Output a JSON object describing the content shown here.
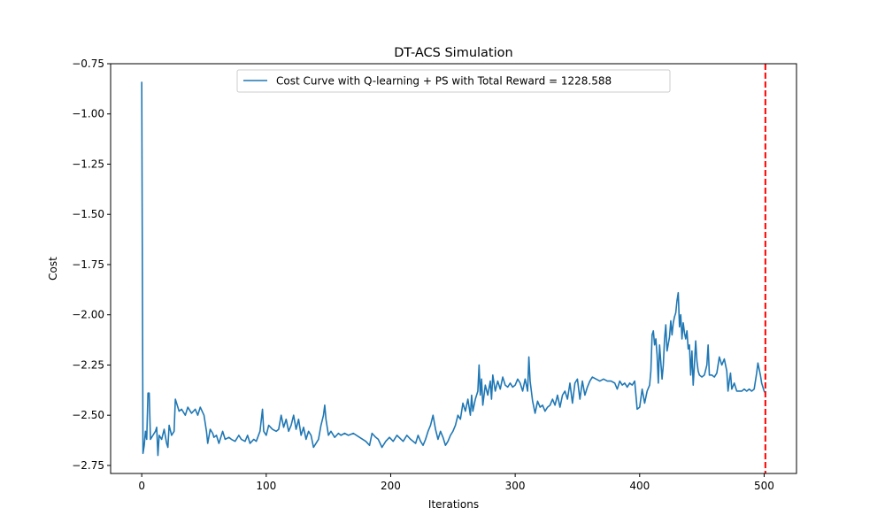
{
  "chart_data": {
    "type": "line",
    "title": "DT-ACS Simulation",
    "xlabel": "Iterations",
    "ylabel": "Cost",
    "xlim": [
      -25,
      526
    ],
    "ylim": [
      -2.79,
      -0.75
    ],
    "x_ticks": [
      0,
      100,
      200,
      300,
      400,
      500
    ],
    "x_tick_labels": [
      "0",
      "100",
      "200",
      "300",
      "400",
      "500"
    ],
    "y_ticks": [
      -0.75,
      -1.0,
      -1.25,
      -1.5,
      -1.75,
      -2.0,
      -2.25,
      -2.5,
      -2.75
    ],
    "y_tick_labels": [
      "−0.75",
      "−1.00",
      "−1.25",
      "−1.50",
      "−1.75",
      "−2.00",
      "−2.25",
      "−2.50",
      "−2.75"
    ],
    "grid": false,
    "legend_position": "upper center",
    "colors": {
      "series": "#1f77b4",
      "vline": "#ff0000"
    },
    "vline": {
      "x": 501,
      "style": "dashed"
    },
    "series": [
      {
        "name": "Cost Curve with Q-learning + PS with Total Reward = 1228.588",
        "points": [
          [
            0,
            -0.84
          ],
          [
            1,
            -2.69
          ],
          [
            2,
            -2.65
          ],
          [
            3,
            -2.58
          ],
          [
            4,
            -2.62
          ],
          [
            5,
            -2.39
          ],
          [
            6,
            -2.39
          ],
          [
            7,
            -2.62
          ],
          [
            9,
            -2.6
          ],
          [
            11,
            -2.58
          ],
          [
            12,
            -2.56
          ],
          [
            13,
            -2.7
          ],
          [
            14,
            -2.6
          ],
          [
            16,
            -2.62
          ],
          [
            18,
            -2.57
          ],
          [
            20,
            -2.64
          ],
          [
            21,
            -2.66
          ],
          [
            22,
            -2.55
          ],
          [
            24,
            -2.6
          ],
          [
            26,
            -2.58
          ],
          [
            27,
            -2.42
          ],
          [
            28,
            -2.44
          ],
          [
            30,
            -2.48
          ],
          [
            32,
            -2.47
          ],
          [
            35,
            -2.5
          ],
          [
            37,
            -2.46
          ],
          [
            40,
            -2.49
          ],
          [
            43,
            -2.47
          ],
          [
            45,
            -2.5
          ],
          [
            47,
            -2.46
          ],
          [
            50,
            -2.5
          ],
          [
            52,
            -2.58
          ],
          [
            53,
            -2.64
          ],
          [
            55,
            -2.57
          ],
          [
            57,
            -2.59
          ],
          [
            58,
            -2.61
          ],
          [
            60,
            -2.6
          ],
          [
            62,
            -2.64
          ],
          [
            65,
            -2.58
          ],
          [
            67,
            -2.62
          ],
          [
            70,
            -2.61
          ],
          [
            72,
            -2.62
          ],
          [
            75,
            -2.63
          ],
          [
            78,
            -2.6
          ],
          [
            80,
            -2.62
          ],
          [
            83,
            -2.63
          ],
          [
            85,
            -2.6
          ],
          [
            87,
            -2.64
          ],
          [
            90,
            -2.62
          ],
          [
            92,
            -2.63
          ],
          [
            95,
            -2.58
          ],
          [
            97,
            -2.47
          ],
          [
            98,
            -2.58
          ],
          [
            100,
            -2.6
          ],
          [
            102,
            -2.55
          ],
          [
            105,
            -2.57
          ],
          [
            108,
            -2.58
          ],
          [
            110,
            -2.57
          ],
          [
            112,
            -2.5
          ],
          [
            114,
            -2.56
          ],
          [
            116,
            -2.52
          ],
          [
            118,
            -2.58
          ],
          [
            120,
            -2.55
          ],
          [
            122,
            -2.5
          ],
          [
            124,
            -2.57
          ],
          [
            126,
            -2.52
          ],
          [
            128,
            -2.6
          ],
          [
            130,
            -2.56
          ],
          [
            132,
            -2.62
          ],
          [
            134,
            -2.58
          ],
          [
            136,
            -2.6
          ],
          [
            138,
            -2.66
          ],
          [
            140,
            -2.64
          ],
          [
            142,
            -2.62
          ],
          [
            144,
            -2.55
          ],
          [
            146,
            -2.5
          ],
          [
            147,
            -2.45
          ],
          [
            148,
            -2.52
          ],
          [
            150,
            -2.6
          ],
          [
            152,
            -2.58
          ],
          [
            155,
            -2.61
          ],
          [
            158,
            -2.59
          ],
          [
            160,
            -2.6
          ],
          [
            163,
            -2.59
          ],
          [
            166,
            -2.6
          ],
          [
            170,
            -2.59
          ],
          [
            175,
            -2.61
          ],
          [
            180,
            -2.63
          ],
          [
            183,
            -2.65
          ],
          [
            185,
            -2.59
          ],
          [
            188,
            -2.61
          ],
          [
            190,
            -2.62
          ],
          [
            193,
            -2.66
          ],
          [
            196,
            -2.63
          ],
          [
            199,
            -2.61
          ],
          [
            202,
            -2.63
          ],
          [
            205,
            -2.6
          ],
          [
            210,
            -2.63
          ],
          [
            213,
            -2.6
          ],
          [
            216,
            -2.62
          ],
          [
            220,
            -2.64
          ],
          [
            222,
            -2.6
          ],
          [
            224,
            -2.63
          ],
          [
            226,
            -2.65
          ],
          [
            228,
            -2.62
          ],
          [
            230,
            -2.58
          ],
          [
            232,
            -2.55
          ],
          [
            234,
            -2.5
          ],
          [
            236,
            -2.57
          ],
          [
            238,
            -2.62
          ],
          [
            240,
            -2.58
          ],
          [
            242,
            -2.61
          ],
          [
            244,
            -2.65
          ],
          [
            246,
            -2.63
          ],
          [
            248,
            -2.6
          ],
          [
            250,
            -2.58
          ],
          [
            252,
            -2.55
          ],
          [
            254,
            -2.5
          ],
          [
            256,
            -2.52
          ],
          [
            258,
            -2.44
          ],
          [
            260,
            -2.48
          ],
          [
            262,
            -2.42
          ],
          [
            264,
            -2.5
          ],
          [
            265,
            -2.4
          ],
          [
            266,
            -2.48
          ],
          [
            268,
            -2.42
          ],
          [
            270,
            -2.38
          ],
          [
            271,
            -2.25
          ],
          [
            272,
            -2.4
          ],
          [
            273,
            -2.32
          ],
          [
            274,
            -2.45
          ],
          [
            276,
            -2.35
          ],
          [
            278,
            -2.4
          ],
          [
            280,
            -2.33
          ],
          [
            281,
            -2.42
          ],
          [
            282,
            -2.3
          ],
          [
            284,
            -2.38
          ],
          [
            286,
            -2.33
          ],
          [
            288,
            -2.37
          ],
          [
            290,
            -2.31
          ],
          [
            292,
            -2.35
          ],
          [
            294,
            -2.36
          ],
          [
            296,
            -2.34
          ],
          [
            298,
            -2.36
          ],
          [
            300,
            -2.35
          ],
          [
            302,
            -2.32
          ],
          [
            304,
            -2.34
          ],
          [
            306,
            -2.38
          ],
          [
            308,
            -2.32
          ],
          [
            310,
            -2.38
          ],
          [
            311,
            -2.21
          ],
          [
            312,
            -2.33
          ],
          [
            314,
            -2.43
          ],
          [
            316,
            -2.49
          ],
          [
            318,
            -2.43
          ],
          [
            320,
            -2.46
          ],
          [
            322,
            -2.45
          ],
          [
            324,
            -2.48
          ],
          [
            326,
            -2.46
          ],
          [
            328,
            -2.45
          ],
          [
            330,
            -2.42
          ],
          [
            332,
            -2.45
          ],
          [
            334,
            -2.4
          ],
          [
            336,
            -2.46
          ],
          [
            338,
            -2.4
          ],
          [
            340,
            -2.38
          ],
          [
            342,
            -2.42
          ],
          [
            344,
            -2.34
          ],
          [
            346,
            -2.44
          ],
          [
            348,
            -2.34
          ],
          [
            350,
            -2.32
          ],
          [
            352,
            -2.42
          ],
          [
            354,
            -2.33
          ],
          [
            356,
            -2.4
          ],
          [
            358,
            -2.36
          ],
          [
            360,
            -2.33
          ],
          [
            362,
            -2.31
          ],
          [
            365,
            -2.32
          ],
          [
            368,
            -2.33
          ],
          [
            371,
            -2.32
          ],
          [
            374,
            -2.33
          ],
          [
            377,
            -2.33
          ],
          [
            380,
            -2.34
          ],
          [
            382,
            -2.37
          ],
          [
            384,
            -2.33
          ],
          [
            386,
            -2.35
          ],
          [
            388,
            -2.34
          ],
          [
            390,
            -2.36
          ],
          [
            392,
            -2.34
          ],
          [
            394,
            -2.35
          ],
          [
            396,
            -2.33
          ],
          [
            398,
            -2.47
          ],
          [
            400,
            -2.46
          ],
          [
            402,
            -2.37
          ],
          [
            404,
            -2.44
          ],
          [
            406,
            -2.38
          ],
          [
            408,
            -2.35
          ],
          [
            409,
            -2.28
          ],
          [
            410,
            -2.1
          ],
          [
            411,
            -2.08
          ],
          [
            412,
            -2.15
          ],
          [
            413,
            -2.12
          ],
          [
            414,
            -2.2
          ],
          [
            415,
            -2.34
          ],
          [
            416,
            -2.15
          ],
          [
            418,
            -2.32
          ],
          [
            419,
            -2.25
          ],
          [
            420,
            -2.12
          ],
          [
            421,
            -2.05
          ],
          [
            422,
            -2.18
          ],
          [
            424,
            -2.11
          ],
          [
            425,
            -2.03
          ],
          [
            426,
            -2.1
          ],
          [
            427,
            -2.04
          ],
          [
            428,
            -2.01
          ],
          [
            429,
            -1.99
          ],
          [
            430,
            -1.93
          ],
          [
            431,
            -1.89
          ],
          [
            432,
            -2.06
          ],
          [
            433,
            -2.0
          ],
          [
            434,
            -2.12
          ],
          [
            435,
            -2.04
          ],
          [
            436,
            -2.09
          ],
          [
            437,
            -2.12
          ],
          [
            438,
            -2.08
          ],
          [
            439,
            -2.17
          ],
          [
            440,
            -2.15
          ],
          [
            441,
            -2.3
          ],
          [
            442,
            -2.18
          ],
          [
            443,
            -2.35
          ],
          [
            444,
            -2.25
          ],
          [
            445,
            -2.13
          ],
          [
            446,
            -2.23
          ],
          [
            447,
            -2.28
          ],
          [
            448,
            -2.3
          ],
          [
            450,
            -2.31
          ],
          [
            452,
            -2.3
          ],
          [
            454,
            -2.25
          ],
          [
            455,
            -2.15
          ],
          [
            456,
            -2.3
          ],
          [
            458,
            -2.3
          ],
          [
            460,
            -2.31
          ],
          [
            462,
            -2.29
          ],
          [
            464,
            -2.21
          ],
          [
            466,
            -2.25
          ],
          [
            468,
            -2.22
          ],
          [
            470,
            -2.28
          ],
          [
            471,
            -2.38
          ],
          [
            472,
            -2.33
          ],
          [
            473,
            -2.29
          ],
          [
            474,
            -2.37
          ],
          [
            476,
            -2.34
          ],
          [
            478,
            -2.38
          ],
          [
            480,
            -2.38
          ],
          [
            482,
            -2.38
          ],
          [
            484,
            -2.37
          ],
          [
            486,
            -2.38
          ],
          [
            488,
            -2.37
          ],
          [
            490,
            -2.38
          ],
          [
            492,
            -2.37
          ],
          [
            494,
            -2.29
          ],
          [
            495,
            -2.24
          ],
          [
            496,
            -2.27
          ],
          [
            497,
            -2.3
          ],
          [
            498,
            -2.34
          ],
          [
            499,
            -2.36
          ],
          [
            500,
            -2.38
          ],
          [
            501,
            -2.39
          ]
        ]
      }
    ]
  }
}
